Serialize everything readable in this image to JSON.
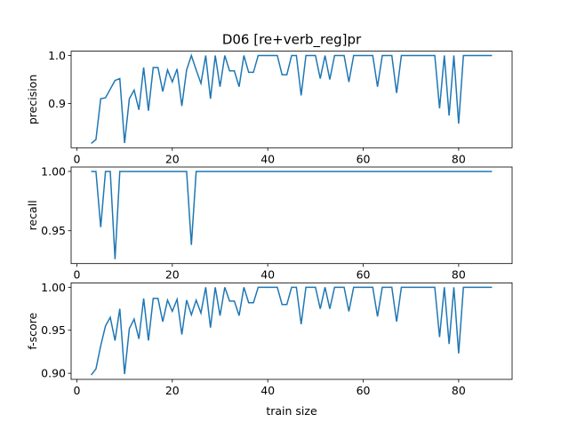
{
  "chart_data": [
    {
      "type": "line",
      "title": "D06 [re+verb_reg]pr",
      "ylabel": "precision",
      "x": [
        3,
        4,
        5,
        6,
        7,
        8,
        9,
        10,
        11,
        12,
        13,
        14,
        15,
        16,
        17,
        18,
        19,
        20,
        21,
        22,
        23,
        24,
        25,
        26,
        27,
        28,
        29,
        30,
        31,
        32,
        33,
        34,
        35,
        36,
        37,
        38,
        39,
        40,
        41,
        42,
        43,
        44,
        45,
        46,
        47,
        48,
        49,
        50,
        51,
        52,
        53,
        54,
        55,
        56,
        57,
        58,
        59,
        60,
        61,
        62,
        63,
        64,
        65,
        66,
        67,
        68,
        69,
        70,
        71,
        72,
        73,
        74,
        75,
        76,
        77,
        78,
        79,
        80,
        81,
        82,
        83,
        84,
        85,
        86,
        87
      ],
      "values": [
        0.817,
        0.825,
        0.91,
        0.912,
        0.93,
        0.948,
        0.952,
        0.818,
        0.91,
        0.928,
        0.887,
        0.975,
        0.885,
        0.975,
        0.975,
        0.925,
        0.97,
        0.945,
        0.972,
        0.895,
        0.97,
        1,
        0.97,
        0.942,
        1,
        0.91,
        1,
        0.935,
        1,
        0.968,
        0.968,
        0.935,
        1,
        0.965,
        0.965,
        1,
        1,
        1,
        1,
        1,
        0.96,
        0.96,
        1,
        1,
        0.917,
        1,
        1,
        1,
        0.952,
        1,
        0.95,
        1,
        1,
        1,
        0.945,
        1,
        1,
        1,
        1,
        1,
        0.935,
        1,
        1,
        1,
        0.922,
        1,
        1,
        1,
        1,
        1,
        1,
        1,
        1,
        0.89,
        1,
        0.875,
        1,
        0.858,
        1,
        1,
        1,
        1,
        1,
        1,
        1
      ],
      "color": "#1f77b4",
      "xlim": [
        -1.2,
        91.2
      ],
      "xticks": [
        0,
        20,
        40,
        60,
        80
      ],
      "ylim": [
        0.808,
        1.009
      ],
      "yticks": [
        0.9,
        {
          "value": 1,
          "label": "1.0"
        }
      ]
    },
    {
      "type": "line",
      "ylabel": "recall",
      "x": [
        3,
        4,
        5,
        6,
        7,
        8,
        9,
        10,
        11,
        12,
        13,
        14,
        15,
        16,
        17,
        18,
        19,
        20,
        21,
        22,
        23,
        24,
        25,
        26,
        27,
        28,
        29,
        30,
        31,
        32,
        33,
        34,
        35,
        36,
        37,
        38,
        39,
        40,
        41,
        42,
        43,
        44,
        45,
        46,
        47,
        48,
        49,
        50,
        51,
        52,
        53,
        54,
        55,
        56,
        57,
        58,
        59,
        60,
        61,
        62,
        63,
        64,
        65,
        66,
        67,
        68,
        69,
        70,
        71,
        72,
        73,
        74,
        75,
        76,
        77,
        78,
        79,
        80,
        81,
        82,
        83,
        84,
        85,
        86,
        87
      ],
      "values": [
        1,
        1,
        0.953,
        1,
        1,
        0.926,
        1,
        1,
        1,
        1,
        1,
        1,
        1,
        1,
        1,
        1,
        1,
        1,
        1,
        1,
        1,
        0.938,
        1,
        1,
        1,
        1,
        1,
        1,
        1,
        1,
        1,
        1,
        1,
        1,
        1,
        1,
        1,
        1,
        1,
        1,
        1,
        1,
        1,
        1,
        1,
        1,
        1,
        1,
        1,
        1,
        1,
        1,
        1,
        1,
        1,
        1,
        1,
        1,
        1,
        1,
        1,
        1,
        1,
        1,
        1,
        1,
        1,
        1,
        1,
        1,
        1,
        1,
        1,
        1,
        1,
        1,
        1,
        1,
        1,
        1,
        1,
        1,
        1,
        1,
        1
      ],
      "color": "#1f77b4",
      "xlim": [
        -1.2,
        91.2
      ],
      "xticks": [
        0,
        20,
        40,
        60,
        80
      ],
      "ylim": [
        0.9223,
        1.0037
      ],
      "yticks": [
        0.95,
        {
          "value": 1,
          "label": "1.00"
        }
      ]
    },
    {
      "type": "line",
      "ylabel": "f-score",
      "xlabel": "train size",
      "x": [
        3,
        4,
        5,
        6,
        7,
        8,
        9,
        10,
        11,
        12,
        13,
        14,
        15,
        16,
        17,
        18,
        19,
        20,
        21,
        22,
        23,
        24,
        25,
        26,
        27,
        28,
        29,
        30,
        31,
        32,
        33,
        34,
        35,
        36,
        37,
        38,
        39,
        40,
        41,
        42,
        43,
        44,
        45,
        46,
        47,
        48,
        49,
        50,
        51,
        52,
        53,
        54,
        55,
        56,
        57,
        58,
        59,
        60,
        61,
        62,
        63,
        64,
        65,
        66,
        67,
        68,
        69,
        70,
        71,
        72,
        73,
        74,
        75,
        76,
        77,
        78,
        79,
        80,
        81,
        82,
        83,
        84,
        85,
        86,
        87
      ],
      "values": [
        0.898,
        0.905,
        0.932,
        0.955,
        0.965,
        0.938,
        0.975,
        0.899,
        0.952,
        0.963,
        0.94,
        0.987,
        0.938,
        0.987,
        0.987,
        0.96,
        0.985,
        0.972,
        0.986,
        0.945,
        0.985,
        0.968,
        0.985,
        0.97,
        1,
        0.953,
        1,
        0.967,
        1,
        0.984,
        0.984,
        0.967,
        1,
        0.982,
        0.982,
        1,
        1,
        1,
        1,
        1,
        0.98,
        0.98,
        1,
        1,
        0.957,
        1,
        1,
        1,
        0.975,
        1,
        0.975,
        1,
        1,
        1,
        0.972,
        1,
        1,
        1,
        1,
        1,
        0.966,
        1,
        1,
        1,
        0.96,
        1,
        1,
        1,
        1,
        1,
        1,
        1,
        1,
        0.942,
        1,
        0.934,
        1,
        0.923,
        1,
        1,
        1,
        1,
        1,
        1,
        1
      ],
      "color": "#1f77b4",
      "xlim": [
        -1.2,
        91.2
      ],
      "xticks": [
        0,
        20,
        40,
        60,
        80
      ],
      "ylim": [
        0.8929,
        1.0051
      ],
      "yticks": [
        {
          "value": 0.9,
          "label": "0.90"
        },
        0.95,
        {
          "value": 1,
          "label": "1.00"
        }
      ]
    }
  ]
}
